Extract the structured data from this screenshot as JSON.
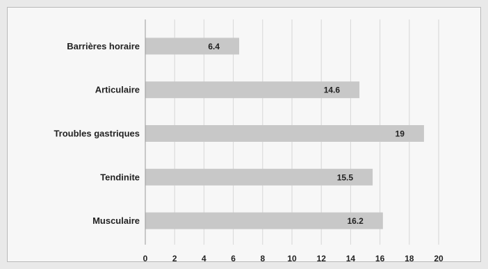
{
  "chart_data": {
    "type": "bar",
    "orientation": "horizontal",
    "categories": [
      "Barrières horaire",
      "Articulaire",
      "Troubles gastriques",
      "Tendinite",
      "Musculaire"
    ],
    "values": [
      6.4,
      14.6,
      19,
      15.5,
      16.2
    ],
    "data_labels": [
      "6.4",
      "14.6",
      "19",
      "15.5",
      "16.2"
    ],
    "xlim": [
      0,
      20
    ],
    "x_ticks": [
      "0",
      "2",
      "4",
      "6",
      "8",
      "10",
      "12",
      "14",
      "16",
      "18",
      "20"
    ],
    "grid": true,
    "colors": {
      "bar": "#c8c8c8",
      "grid": "#d6d6d6",
      "axis": "#9a9a9a"
    }
  }
}
